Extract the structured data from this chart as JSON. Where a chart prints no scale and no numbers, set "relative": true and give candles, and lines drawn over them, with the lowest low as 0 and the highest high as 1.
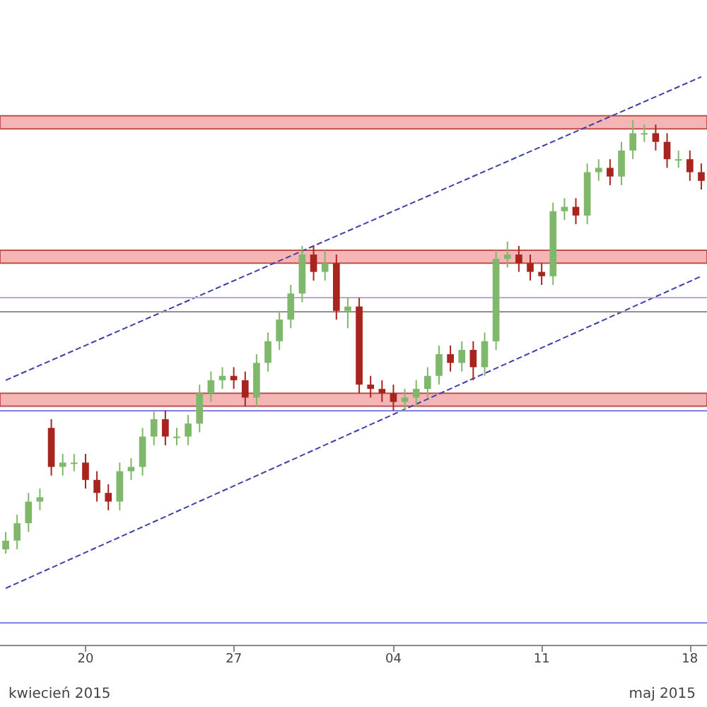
{
  "chart_data": {
    "type": "candlestick",
    "relative": true,
    "grid": false,
    "categories": [
      null,
      null,
      null,
      null,
      null,
      null,
      null,
      "20",
      null,
      null,
      null,
      null,
      null,
      null,
      null,
      null,
      null,
      null,
      null,
      null,
      "27",
      null,
      null,
      null,
      null,
      null,
      null,
      null,
      null,
      null,
      null,
      null,
      null,
      null,
      "04",
      null,
      null,
      null,
      null,
      null,
      null,
      null,
      null,
      null,
      null,
      null,
      null,
      "11",
      null,
      null,
      null,
      null,
      null,
      null,
      null,
      null,
      null,
      null,
      null,
      null,
      "18",
      null
    ],
    "ohlc": [
      [
        0.01,
        0.05,
        0,
        0.03
      ],
      [
        0.03,
        0.09,
        0.01,
        0.07
      ],
      [
        0.07,
        0.14,
        0.05,
        0.12
      ],
      [
        0.12,
        0.15,
        0.1,
        0.13
      ],
      [
        0.29,
        0.31,
        0.18,
        0.2
      ],
      [
        0.2,
        0.23,
        0.18,
        0.21
      ],
      [
        0.21,
        0.23,
        0.19,
        0.21
      ],
      [
        0.21,
        0.23,
        0.15,
        0.17
      ],
      [
        0.17,
        0.19,
        0.12,
        0.14
      ],
      [
        0.14,
        0.16,
        0.1,
        0.12
      ],
      [
        0.12,
        0.21,
        0.1,
        0.19
      ],
      [
        0.19,
        0.22,
        0.17,
        0.2
      ],
      [
        0.2,
        0.29,
        0.18,
        0.27
      ],
      [
        0.27,
        0.33,
        0.25,
        0.31
      ],
      [
        0.31,
        0.33,
        0.25,
        0.27
      ],
      [
        0.27,
        0.29,
        0.25,
        0.27
      ],
      [
        0.27,
        0.32,
        0.25,
        0.3
      ],
      [
        0.3,
        0.39,
        0.28,
        0.37
      ],
      [
        0.37,
        0.42,
        0.35,
        0.4
      ],
      [
        0.4,
        0.43,
        0.38,
        0.41
      ],
      [
        0.41,
        0.43,
        0.38,
        0.4
      ],
      [
        0.4,
        0.42,
        0.34,
        0.36
      ],
      [
        0.36,
        0.46,
        0.34,
        0.44
      ],
      [
        0.44,
        0.51,
        0.42,
        0.49
      ],
      [
        0.49,
        0.56,
        0.47,
        0.54
      ],
      [
        0.54,
        0.62,
        0.52,
        0.6
      ],
      [
        0.6,
        0.71,
        0.58,
        0.69
      ],
      [
        0.69,
        0.71,
        0.63,
        0.65
      ],
      [
        0.65,
        0.7,
        0.63,
        0.67
      ],
      [
        0.67,
        0.69,
        0.54,
        0.56
      ],
      [
        0.56,
        0.59,
        0.52,
        0.57
      ],
      [
        0.57,
        0.59,
        0.37,
        0.39
      ],
      [
        0.39,
        0.41,
        0.36,
        0.38
      ],
      [
        0.38,
        0.4,
        0.35,
        0.37
      ],
      [
        0.37,
        0.39,
        0.33,
        0.35
      ],
      [
        0.35,
        0.38,
        0.33,
        0.36
      ],
      [
        0.36,
        0.4,
        0.34,
        0.38
      ],
      [
        0.38,
        0.43,
        0.36,
        0.41
      ],
      [
        0.41,
        0.48,
        0.39,
        0.46
      ],
      [
        0.46,
        0.48,
        0.42,
        0.44
      ],
      [
        0.44,
        0.49,
        0.42,
        0.47
      ],
      [
        0.47,
        0.49,
        0.4,
        0.43
      ],
      [
        0.43,
        0.51,
        0.41,
        0.49
      ],
      [
        0.49,
        0.7,
        0.47,
        0.68
      ],
      [
        0.68,
        0.72,
        0.66,
        0.69
      ],
      [
        0.69,
        0.71,
        0.65,
        0.67
      ],
      [
        0.67,
        0.69,
        0.63,
        0.65
      ],
      [
        0.65,
        0.67,
        0.62,
        0.64
      ],
      [
        0.64,
        0.81,
        0.62,
        0.79
      ],
      [
        0.79,
        0.82,
        0.77,
        0.8
      ],
      [
        0.8,
        0.82,
        0.76,
        0.78
      ],
      [
        0.78,
        0.9,
        0.76,
        0.88
      ],
      [
        0.88,
        0.91,
        0.86,
        0.89
      ],
      [
        0.89,
        0.91,
        0.85,
        0.87
      ],
      [
        0.87,
        0.95,
        0.85,
        0.93
      ],
      [
        0.93,
        1.0,
        0.91,
        0.97
      ],
      [
        0.97,
        0.99,
        0.95,
        0.97
      ],
      [
        0.97,
        0.99,
        0.93,
        0.95
      ],
      [
        0.95,
        0.97,
        0.89,
        0.91
      ],
      [
        0.91,
        0.93,
        0.89,
        0.91
      ],
      [
        0.91,
        0.93,
        0.86,
        0.88
      ],
      [
        0.88,
        0.9,
        0.84,
        0.86
      ]
    ],
    "colors": [
      "#7fb86a",
      "#7fb86a",
      "#7fb86a",
      "#7fb86a",
      "#a8251f",
      "#7fb86a",
      "#7fb86a",
      "#a8251f",
      "#a8251f",
      "#a8251f",
      "#7fb86a",
      "#7fb86a",
      "#7fb86a",
      "#7fb86a",
      "#a8251f",
      "#7fb86a",
      "#7fb86a",
      "#7fb86a",
      "#7fb86a",
      "#7fb86a",
      "#a8251f",
      "#a8251f",
      "#7fb86a",
      "#7fb86a",
      "#7fb86a",
      "#7fb86a",
      "#7fb86a",
      "#a8251f",
      "#7fb86a",
      "#a8251f",
      "#7fb86a",
      "#a8251f",
      "#a8251f",
      "#a8251f",
      "#a8251f",
      "#7fb86a",
      "#7fb86a",
      "#7fb86a",
      "#7fb86a",
      "#a8251f",
      "#7fb86a",
      "#a8251f",
      "#7fb86a",
      "#7fb86a",
      "#7fb86a",
      "#a8251f",
      "#a8251f",
      "#a8251f",
      "#7fb86a",
      "#7fb86a",
      "#a8251f",
      "#7fb86a",
      "#7fb86a",
      "#a8251f",
      "#7fb86a",
      "#7fb86a",
      "#7fb86a",
      "#a8251f",
      "#a8251f",
      "#7fb86a",
      "#a8251f",
      "#a8251f"
    ],
    "series": [
      {
        "type": "line",
        "color": "#3b3fa8",
        "line_style": "dashed",
        "values": [
          0.4,
          null,
          null,
          null,
          null,
          null,
          null,
          null,
          null,
          null,
          null,
          null,
          null,
          null,
          null,
          null,
          null,
          null,
          null,
          null,
          null,
          null,
          null,
          null,
          null,
          null,
          null,
          null,
          null,
          null,
          null,
          null,
          null,
          null,
          null,
          null,
          null,
          null,
          null,
          null,
          null,
          null,
          null,
          null,
          null,
          null,
          null,
          null,
          null,
          null,
          null,
          null,
          null,
          null,
          null,
          null,
          null,
          null,
          null,
          null,
          null,
          1.1
        ]
      },
      {
        "type": "line",
        "color": "#3c41ab",
        "line_style": "dashed",
        "values": [
          -0.08,
          null,
          null,
          null,
          null,
          null,
          null,
          null,
          null,
          null,
          null,
          null,
          null,
          null,
          null,
          null,
          null,
          null,
          null,
          null,
          null,
          null,
          null,
          null,
          null,
          null,
          null,
          null,
          null,
          null,
          null,
          null,
          null,
          null,
          null,
          null,
          null,
          null,
          null,
          null,
          null,
          null,
          null,
          null,
          null,
          null,
          null,
          null,
          null,
          null,
          null,
          null,
          null,
          null,
          null,
          null,
          null,
          null,
          null,
          null,
          null,
          0.64
        ]
      }
    ],
    "bands": [
      {
        "axis": "y",
        "from": 0.98,
        "to": 1.01,
        "color": "#f5b5b5"
      },
      {
        "axis": "y",
        "from": 0.67,
        "to": 0.7,
        "color": "#f5b5b5"
      },
      {
        "axis": "y",
        "from": 0.34,
        "to": 0.37,
        "color": "#f5b5b5"
      }
    ],
    "ref_lines": [
      {
        "axis": "y",
        "value": 0.59,
        "color": "#c8a0d8"
      },
      {
        "axis": "y",
        "value": 0.56,
        "color": "#909090"
      },
      {
        "axis": "y",
        "value": 0.33,
        "color": "#8080e0"
      },
      {
        "axis": "y",
        "value": -0.16,
        "color": "#8080e0"
      }
    ],
    "annotations": [
      "kwiecień 2015",
      "maj 2015"
    ]
  }
}
